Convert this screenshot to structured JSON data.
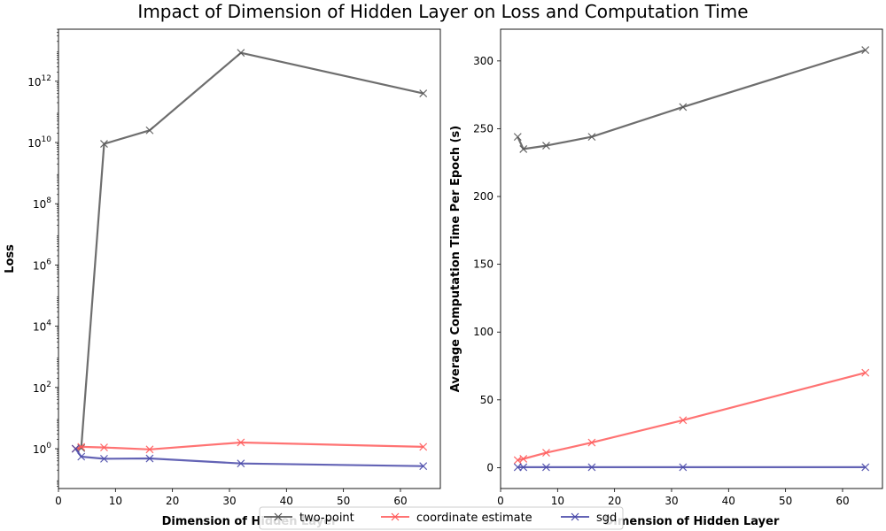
{
  "figure": {
    "title": "Impact of Dimension of Hidden Layer on Loss and Computation Time"
  },
  "legend": {
    "placement": "bottom-center",
    "entries": [
      {
        "label": "two-point",
        "color": "#555555"
      },
      {
        "label": "coordinate estimate",
        "color": "#ff5a5a"
      },
      {
        "label": "sgd",
        "color": "#4848a8"
      }
    ]
  },
  "chart_data": [
    {
      "type": "line",
      "yscale": "log",
      "title": "",
      "xlabel": "Dimension of Hidden Layer",
      "ylabel": "Loss",
      "xlim": [
        0,
        67
      ],
      "ylim_log10": [
        -1.3,
        13.7
      ],
      "xticks": [
        0,
        10,
        20,
        30,
        40,
        50,
        60
      ],
      "yticks_log10": [
        0,
        2,
        4,
        6,
        8,
        10,
        12
      ],
      "grid": false,
      "x": [
        3,
        4,
        8,
        16,
        32,
        64
      ],
      "series": [
        {
          "name": "two-point",
          "color": "#555555",
          "marker": "x",
          "values": [
            1.0,
            1.05,
            9000000000.0,
            25000000000.0,
            8500000000000.0,
            400000000000.0
          ]
        },
        {
          "name": "coordinate estimate",
          "color": "#ff5a5a",
          "marker": "x",
          "values": [
            1.0,
            1.15,
            1.1,
            0.95,
            1.6,
            1.15
          ]
        },
        {
          "name": "sgd",
          "color": "#4848a8",
          "marker": "x",
          "values": [
            1.0,
            0.55,
            0.47,
            0.48,
            0.33,
            0.27
          ]
        }
      ]
    },
    {
      "type": "line",
      "yscale": "linear",
      "title": "",
      "xlabel": "Dimension of Hidden Layer",
      "ylabel": "Average Computation Time Per Epoch (s)",
      "xlim": [
        0,
        67
      ],
      "ylim": [
        -15.4,
        323.4
      ],
      "xticks": [
        0,
        10,
        20,
        30,
        40,
        50,
        60
      ],
      "yticks": [
        0,
        50,
        100,
        150,
        200,
        250,
        300
      ],
      "grid": false,
      "x": [
        3,
        4,
        8,
        16,
        32,
        64
      ],
      "series": [
        {
          "name": "two-point",
          "color": "#555555",
          "marker": "x",
          "values": [
            244,
            235,
            237.5,
            244,
            266,
            308
          ]
        },
        {
          "name": "coordinate estimate",
          "color": "#ff5a5a",
          "marker": "x",
          "values": [
            5.5,
            6.5,
            11,
            18.5,
            35,
            70
          ]
        },
        {
          "name": "sgd",
          "color": "#4848a8",
          "marker": "x",
          "values": [
            0.3,
            0.3,
            0.3,
            0.3,
            0.3,
            0.3
          ]
        }
      ]
    }
  ]
}
